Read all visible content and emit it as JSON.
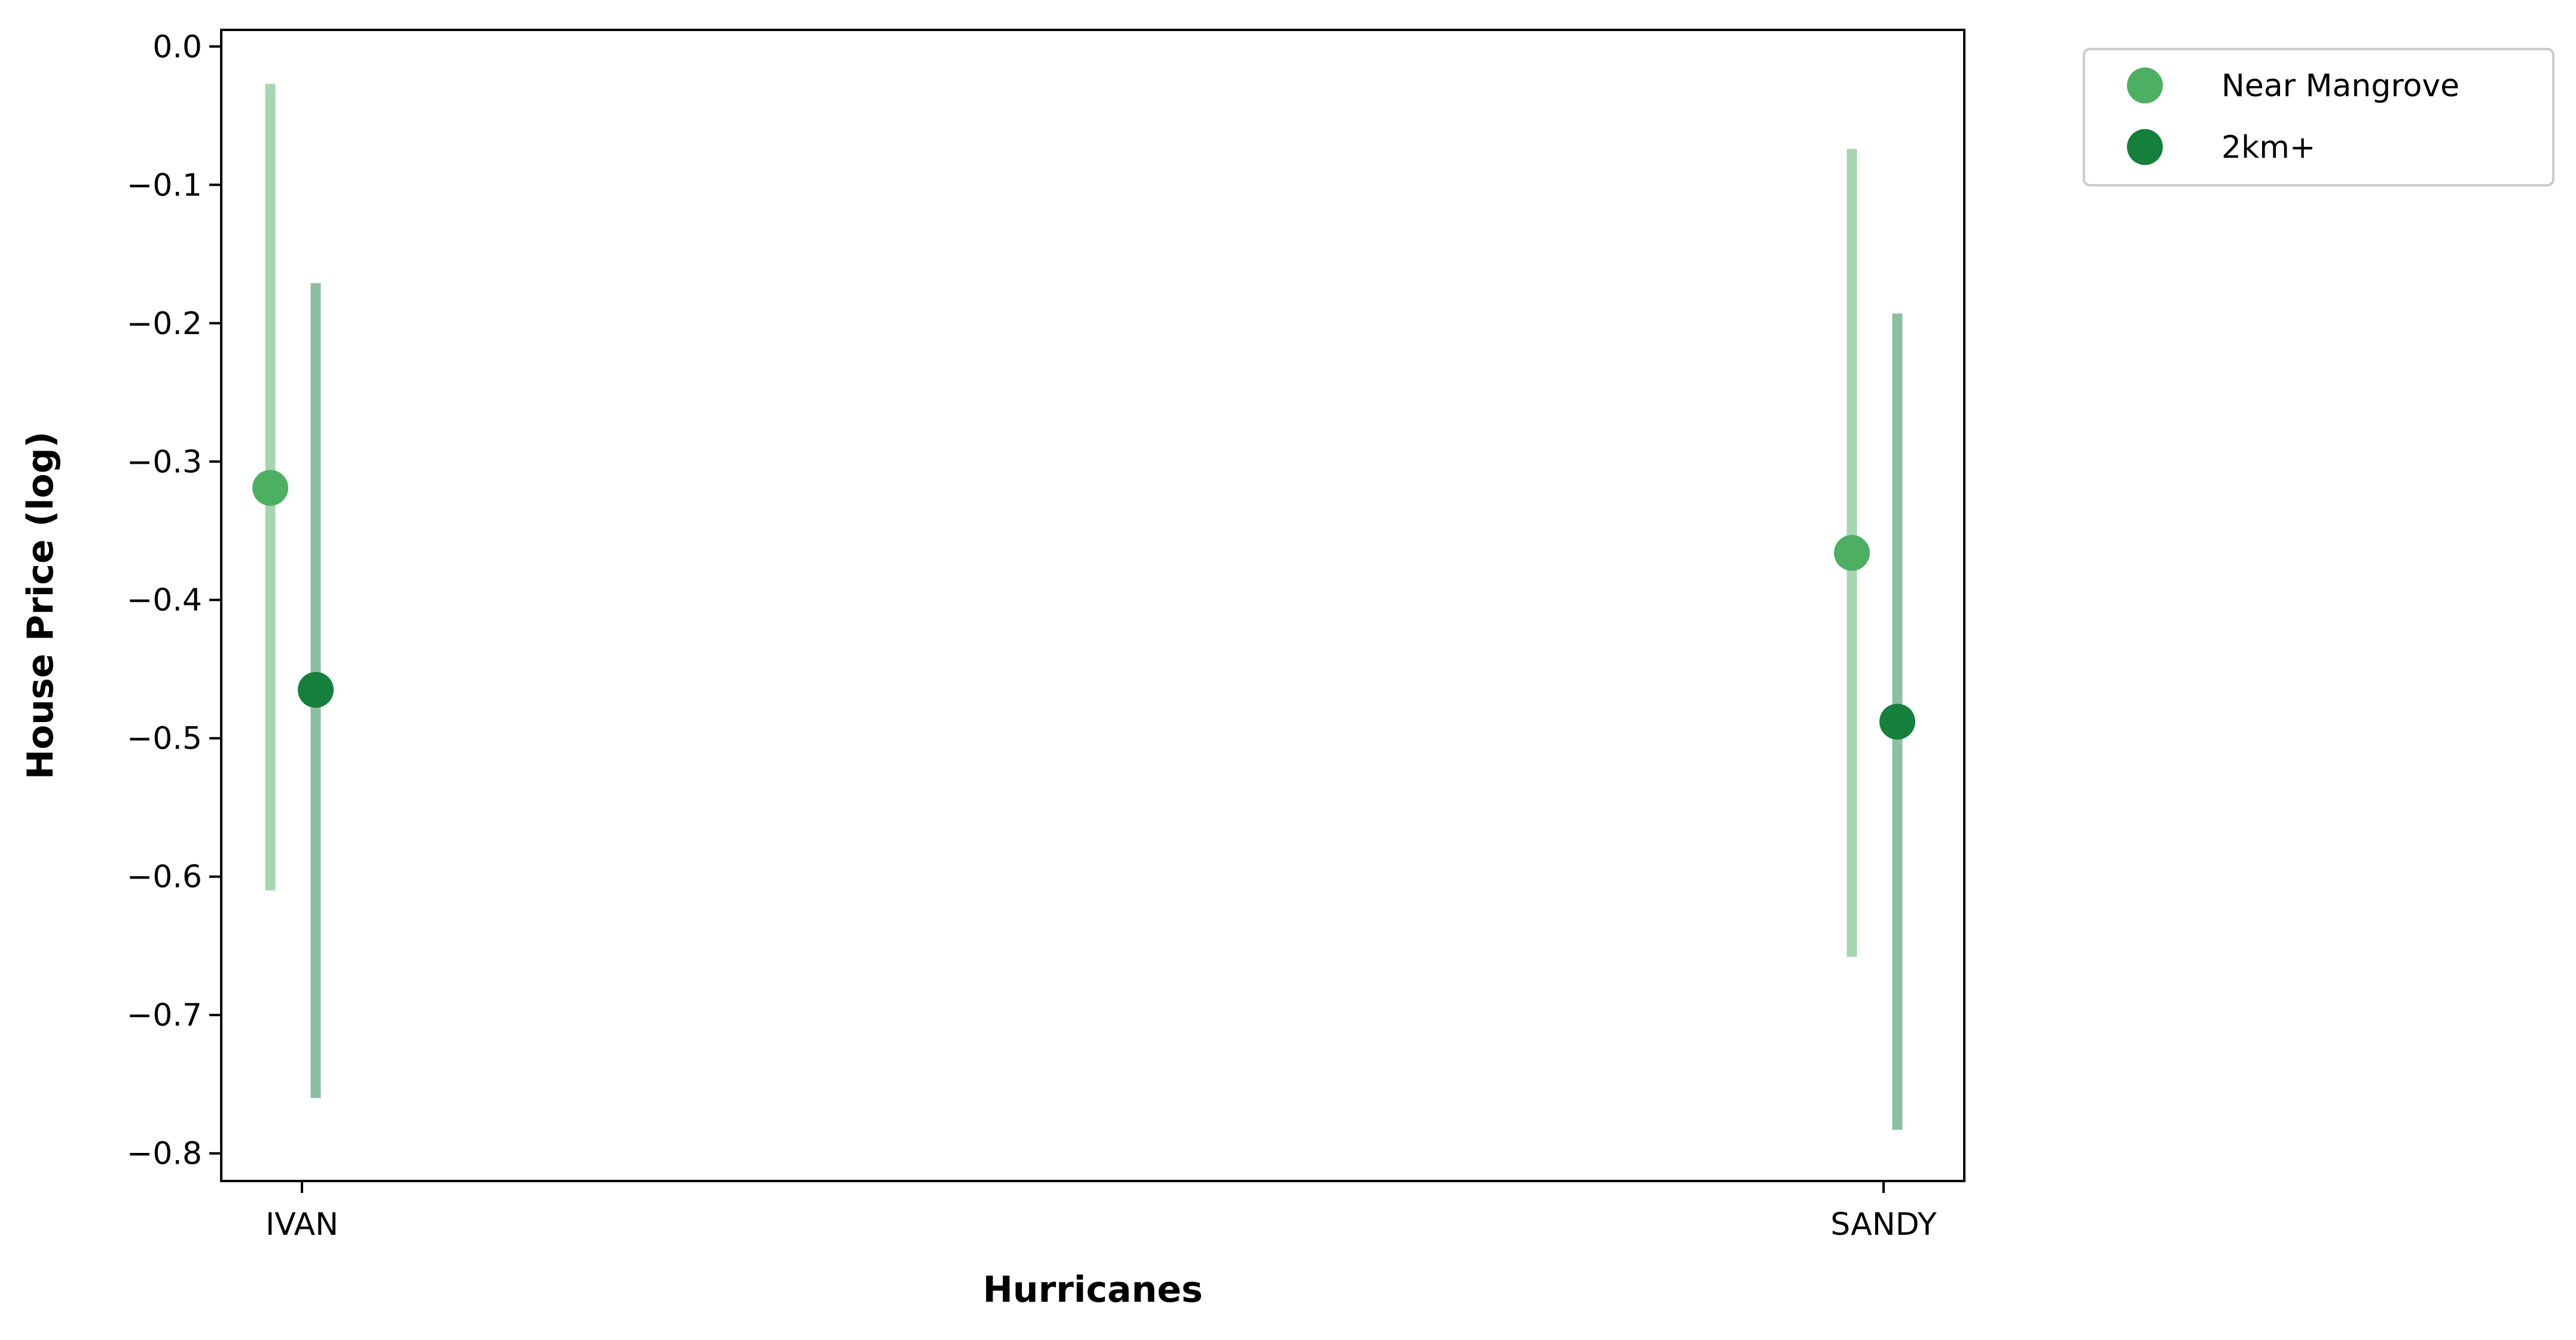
{
  "chart_data": {
    "type": "scatter",
    "subtype": "point-with-error-bars",
    "title": "",
    "xlabel": "Hurricanes",
    "ylabel": "House Price (log)",
    "categories": [
      "IVAN",
      "SANDY"
    ],
    "ylim": [
      -0.82,
      0.012
    ],
    "yticks": [
      0.0,
      -0.1,
      -0.2,
      -0.3,
      -0.4,
      -0.5,
      -0.6,
      -0.7,
      -0.8
    ],
    "ytick_labels": [
      "0.0",
      "−0.1",
      "−0.2",
      "−0.3",
      "−0.4",
      "−0.5",
      "−0.6",
      "−0.7",
      "−0.8"
    ],
    "grid": false,
    "legend_position": "outside top-right",
    "series": [
      {
        "name": "Near Mangrove",
        "color": "#4daf62",
        "errorbar_color": "#a6d6b0",
        "points": [
          {
            "category": "IVAN",
            "y": -0.319,
            "low": -0.61,
            "high": -0.027
          },
          {
            "category": "SANDY",
            "y": -0.366,
            "low": -0.658,
            "high": -0.074
          }
        ]
      },
      {
        "name": "2km+",
        "color": "#157f3c",
        "errorbar_color": "#8cbfa0",
        "points": [
          {
            "category": "IVAN",
            "y": -0.465,
            "low": -0.76,
            "high": -0.171
          },
          {
            "category": "SANDY",
            "y": -0.488,
            "low": -0.783,
            "high": -0.193
          }
        ]
      }
    ]
  }
}
